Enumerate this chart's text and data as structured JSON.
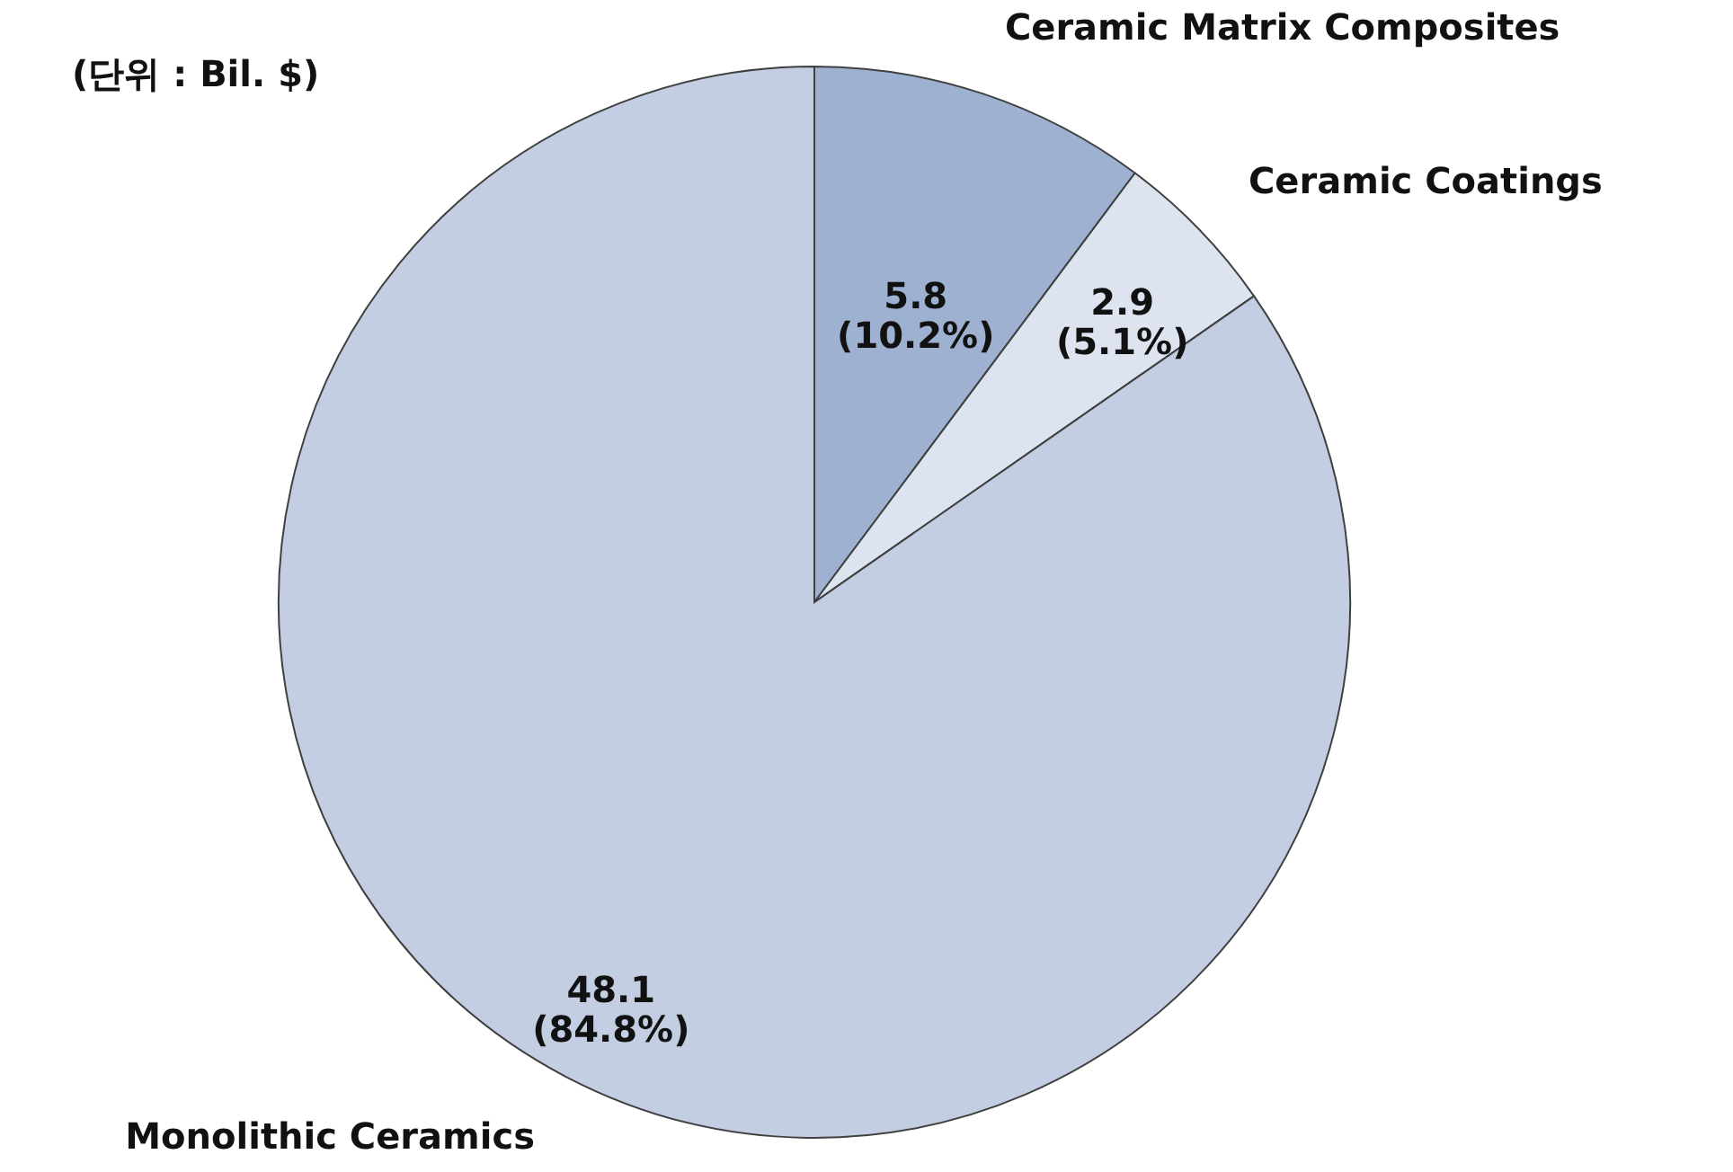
{
  "chart_data": {
    "type": "pie",
    "categories": [
      "Ceramic Matrix Composites",
      "Ceramic Coatings",
      "Monolithic Ceramics"
    ],
    "values": [
      5.8,
      2.9,
      48.1
    ],
    "colors": [
      "#9eb1d1",
      "#dde4f0",
      "#c3cee3"
    ],
    "value_labels": [
      "5.8\n(10.2%)",
      "2.9\n(5.1%)",
      "48.1\n(84.8%)"
    ],
    "annotations": [
      "(단위 : Bil. $)"
    ]
  }
}
